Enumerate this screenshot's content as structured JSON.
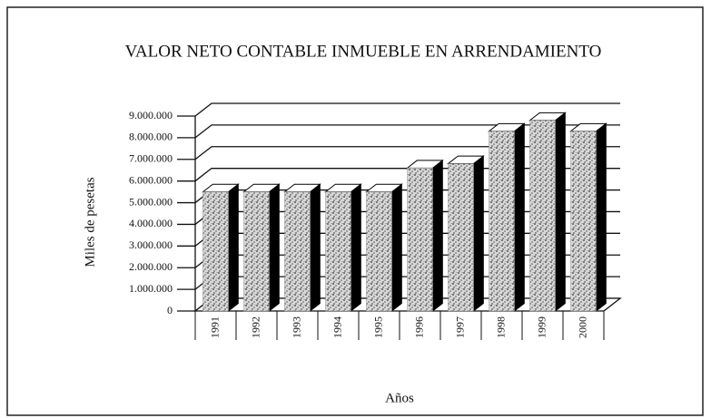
{
  "chart_data": {
    "type": "bar3d",
    "title": "VALOR NETO CONTABLE INMUEBLE EN ARRENDAMIENTO",
    "ylabel": "Miles de pesetas",
    "xlabel": "Años",
    "categories": [
      "1991",
      "1992",
      "1993",
      "1994",
      "1995",
      "1996",
      "1997",
      "1998",
      "1999",
      "2000"
    ],
    "values": [
      5500000,
      5500000,
      5500000,
      5500000,
      5500000,
      6600000,
      6800000,
      8300000,
      8800000,
      8300000
    ],
    "color": "#9a9a9a",
    "ylim": [
      0,
      9000000
    ],
    "yticks": [
      0,
      {
        "value": 1000000,
        "label": "1.000.000"
      },
      {
        "value": 2000000,
        "label": "2.000.000"
      },
      {
        "value": 3000000,
        "label": "3.000.000"
      },
      {
        "value": 4000000,
        "label": "4.000.000"
      },
      {
        "value": 5000000,
        "label": "5.000.000"
      },
      {
        "value": 6000000,
        "label": "6.000.000"
      },
      {
        "value": 7000000,
        "label": "7.000.000"
      },
      {
        "value": 8000000,
        "label": "8.000.000"
      },
      {
        "value": 9000000,
        "label": "9.000.000"
      }
    ],
    "grid": true
  }
}
